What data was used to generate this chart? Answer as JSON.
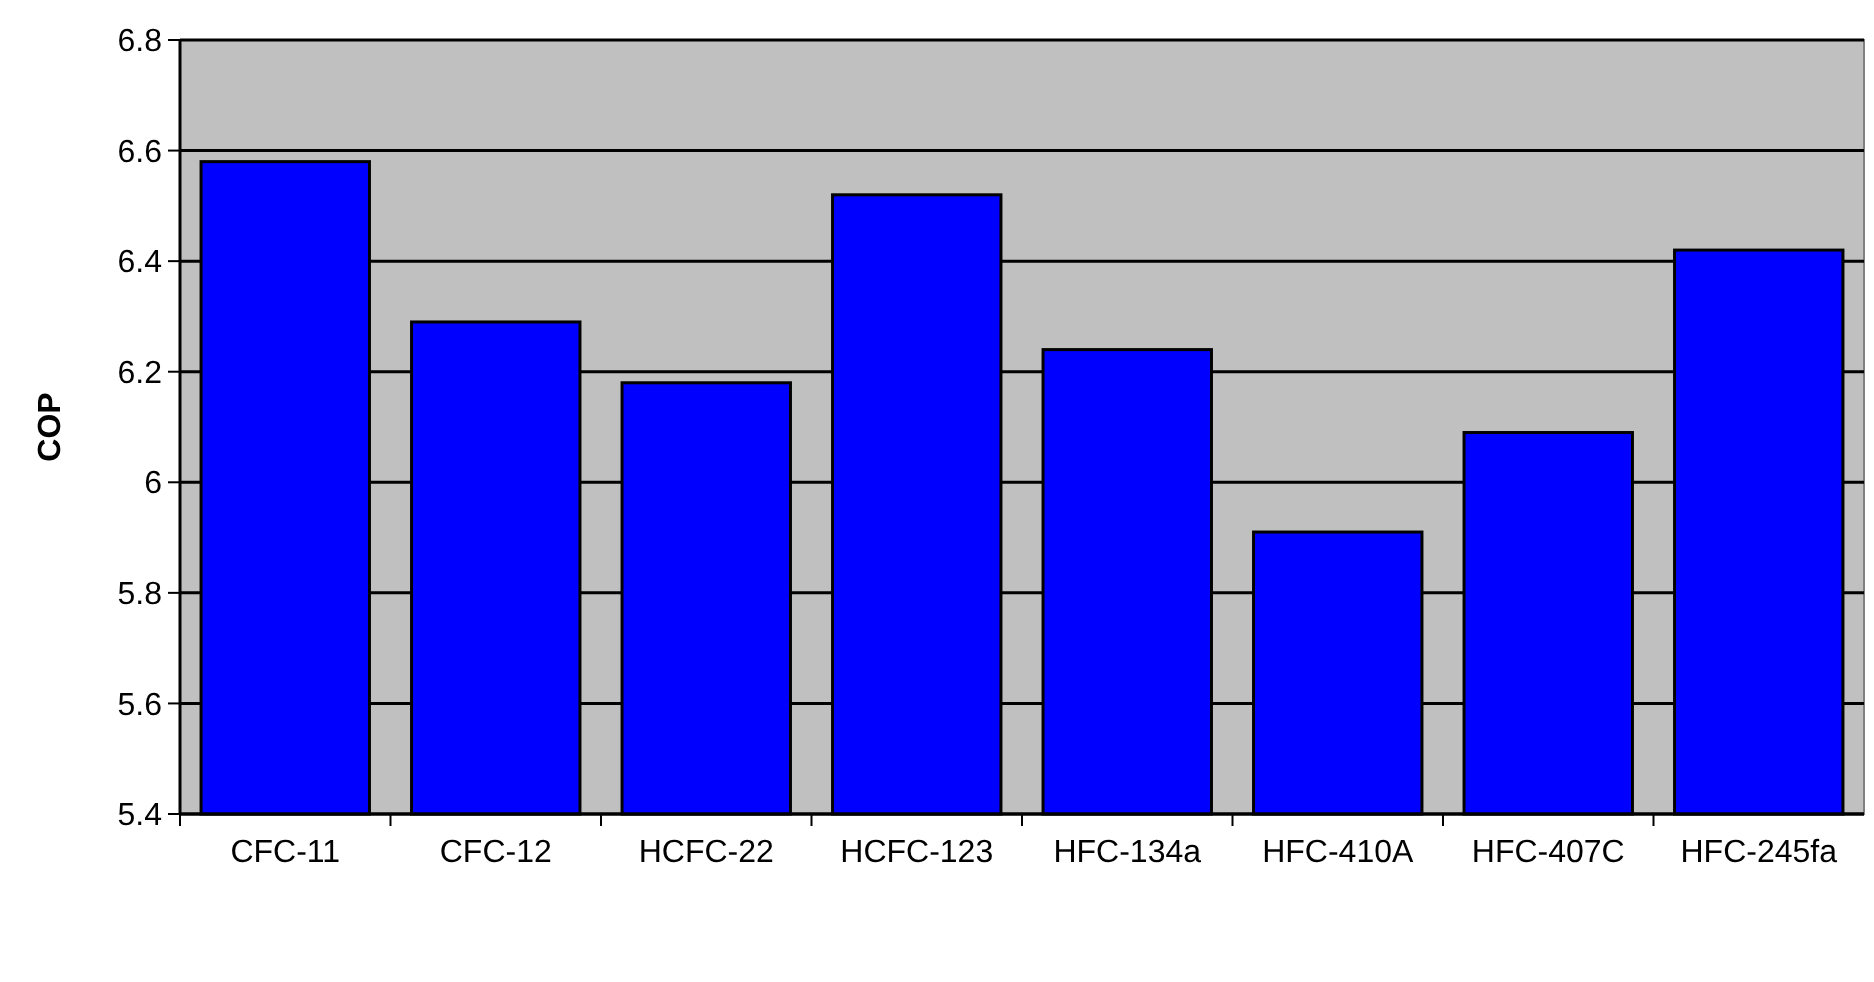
{
  "chart_data": {
    "type": "bar",
    "ylabel": "COP",
    "categories": [
      "CFC-11",
      "CFC-12",
      "HCFC-22",
      "HCFC-123",
      "HFC-134a",
      "HFC-410A",
      "HFC-407C",
      "HFC-245fa"
    ],
    "values": [
      6.58,
      6.29,
      6.18,
      6.52,
      6.24,
      5.91,
      6.09,
      6.42
    ],
    "color": "#0000ff",
    "ylim": [
      5.4,
      6.8
    ],
    "yticks": [
      5.4,
      5.6,
      5.8,
      6,
      6.2,
      6.4,
      6.6,
      6.8
    ],
    "grid": "y"
  }
}
